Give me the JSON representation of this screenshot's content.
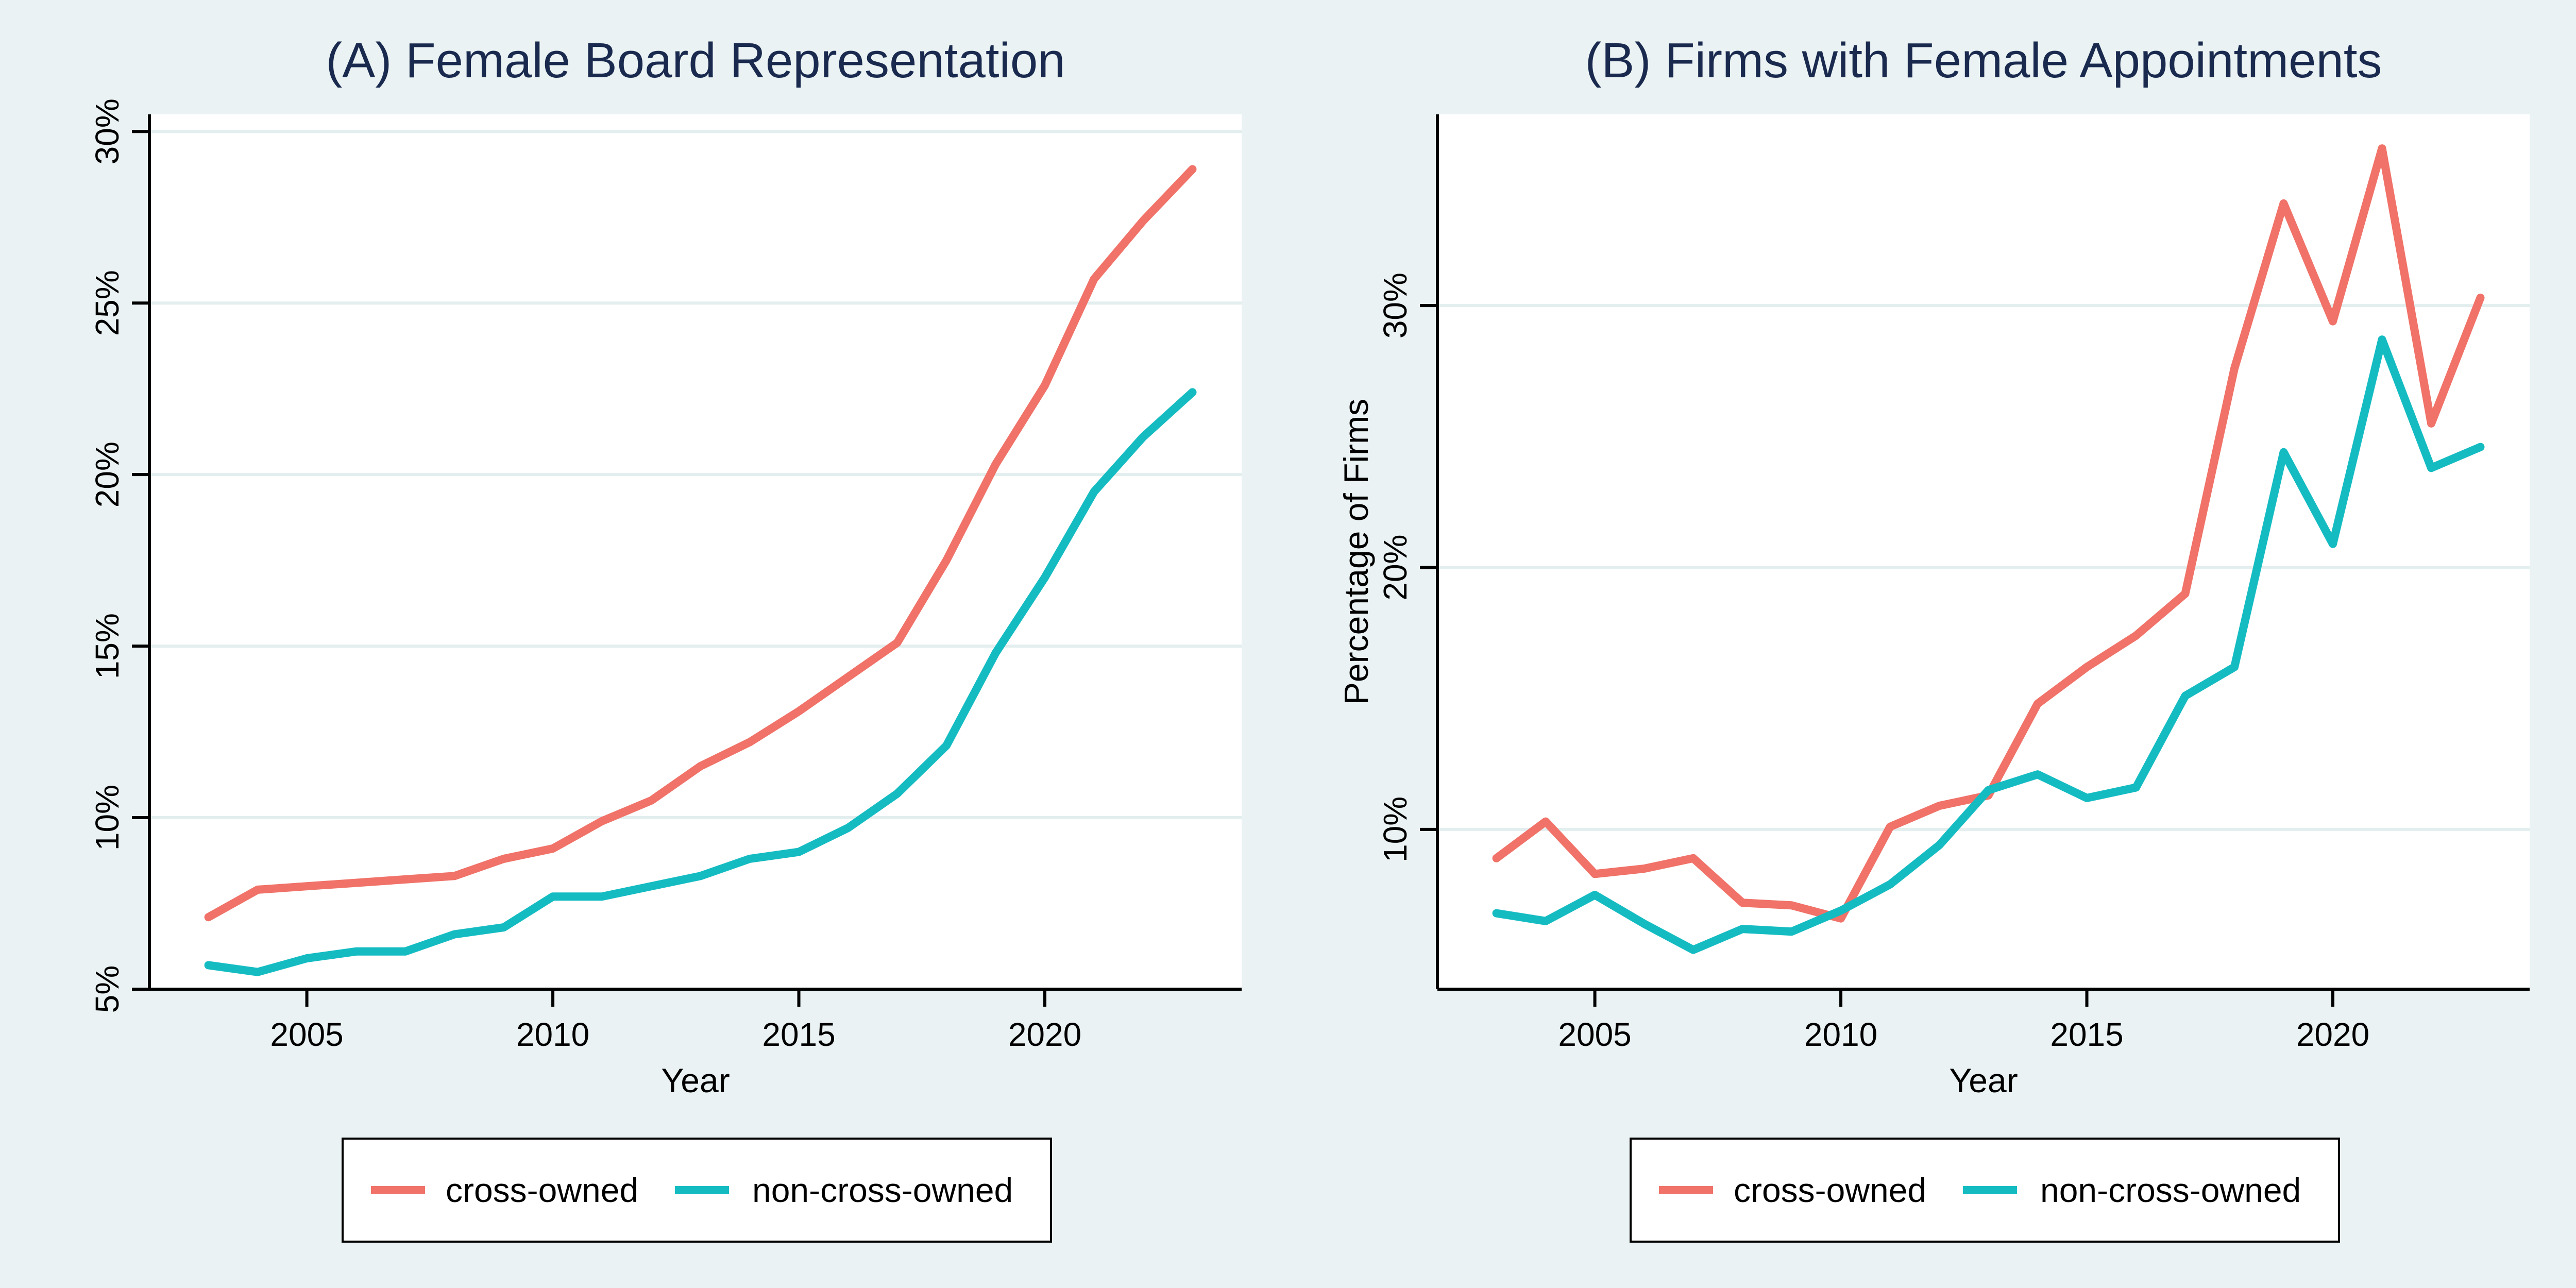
{
  "chart_data": [
    {
      "type": "line",
      "title": "(A) Female Board Representation",
      "xlabel": "Year",
      "ylabel": "",
      "xlim": [
        2001.8,
        2024.0
      ],
      "ylim": [
        0.05,
        0.305
      ],
      "xticks": [
        2005,
        2010,
        2015,
        2020
      ],
      "xtick_labels": [
        "2005",
        "2010",
        "2015",
        "2020"
      ],
      "yticks": [
        0.05,
        0.1,
        0.15,
        0.2,
        0.25,
        0.3
      ],
      "ytick_labels": [
        "5%",
        "10%",
        "15%",
        "20%",
        "25%",
        "30%"
      ],
      "grid": true,
      "legend_position": "bottom",
      "x": [
        2003,
        2004,
        2005,
        2006,
        2007,
        2008,
        2009,
        2010,
        2011,
        2012,
        2013,
        2014,
        2015,
        2016,
        2017,
        2018,
        2019,
        2020,
        2021,
        2022,
        2023
      ],
      "series": [
        {
          "name": "cross-owned",
          "color": "#f07268",
          "values": [
            0.071,
            0.079,
            0.08,
            0.081,
            0.082,
            0.083,
            0.088,
            0.091,
            0.099,
            0.105,
            0.115,
            0.122,
            0.131,
            0.141,
            0.151,
            0.175,
            0.203,
            0.226,
            0.257,
            0.274,
            0.289
          ]
        },
        {
          "name": "non-cross-owned",
          "color": "#14bcc2",
          "values": [
            0.057,
            0.055,
            0.059,
            0.061,
            0.061,
            0.066,
            0.068,
            0.077,
            0.077,
            0.08,
            0.083,
            0.088,
            0.09,
            0.097,
            0.107,
            0.121,
            0.148,
            0.17,
            0.195,
            0.211,
            0.224
          ]
        }
      ]
    },
    {
      "type": "line",
      "title": "(B) Firms with Female Appointments",
      "xlabel": "Year",
      "ylabel": "Percentage of Firms",
      "xlim": [
        2001.8,
        2024.0
      ],
      "ylim": [
        0.039,
        0.373
      ],
      "xticks": [
        2005,
        2010,
        2015,
        2020
      ],
      "xtick_labels": [
        "2005",
        "2010",
        "2015",
        "2020"
      ],
      "yticks": [
        0.1,
        0.2,
        0.3
      ],
      "ytick_labels": [
        "10%",
        "20%",
        "30%"
      ],
      "grid": true,
      "legend_position": "bottom",
      "x": [
        2003,
        2004,
        2005,
        2006,
        2007,
        2008,
        2009,
        2010,
        2011,
        2012,
        2013,
        2014,
        2015,
        2016,
        2017,
        2018,
        2019,
        2020,
        2021,
        2022,
        2023
      ],
      "series": [
        {
          "name": "cross-owned",
          "color": "#f07268",
          "values": [
            0.089,
            0.103,
            0.083,
            0.085,
            0.089,
            0.072,
            0.071,
            0.066,
            0.101,
            0.109,
            0.113,
            0.148,
            0.162,
            0.174,
            0.19,
            0.276,
            0.339,
            0.294,
            0.36,
            0.255,
            0.303
          ]
        },
        {
          "name": "non-cross-owned",
          "color": "#14bcc2",
          "values": [
            0.068,
            0.065,
            0.075,
            0.064,
            0.054,
            0.062,
            0.061,
            0.069,
            0.079,
            0.094,
            0.115,
            0.121,
            0.112,
            0.116,
            0.151,
            0.162,
            0.244,
            0.209,
            0.287,
            0.238,
            0.246
          ]
        }
      ]
    }
  ]
}
